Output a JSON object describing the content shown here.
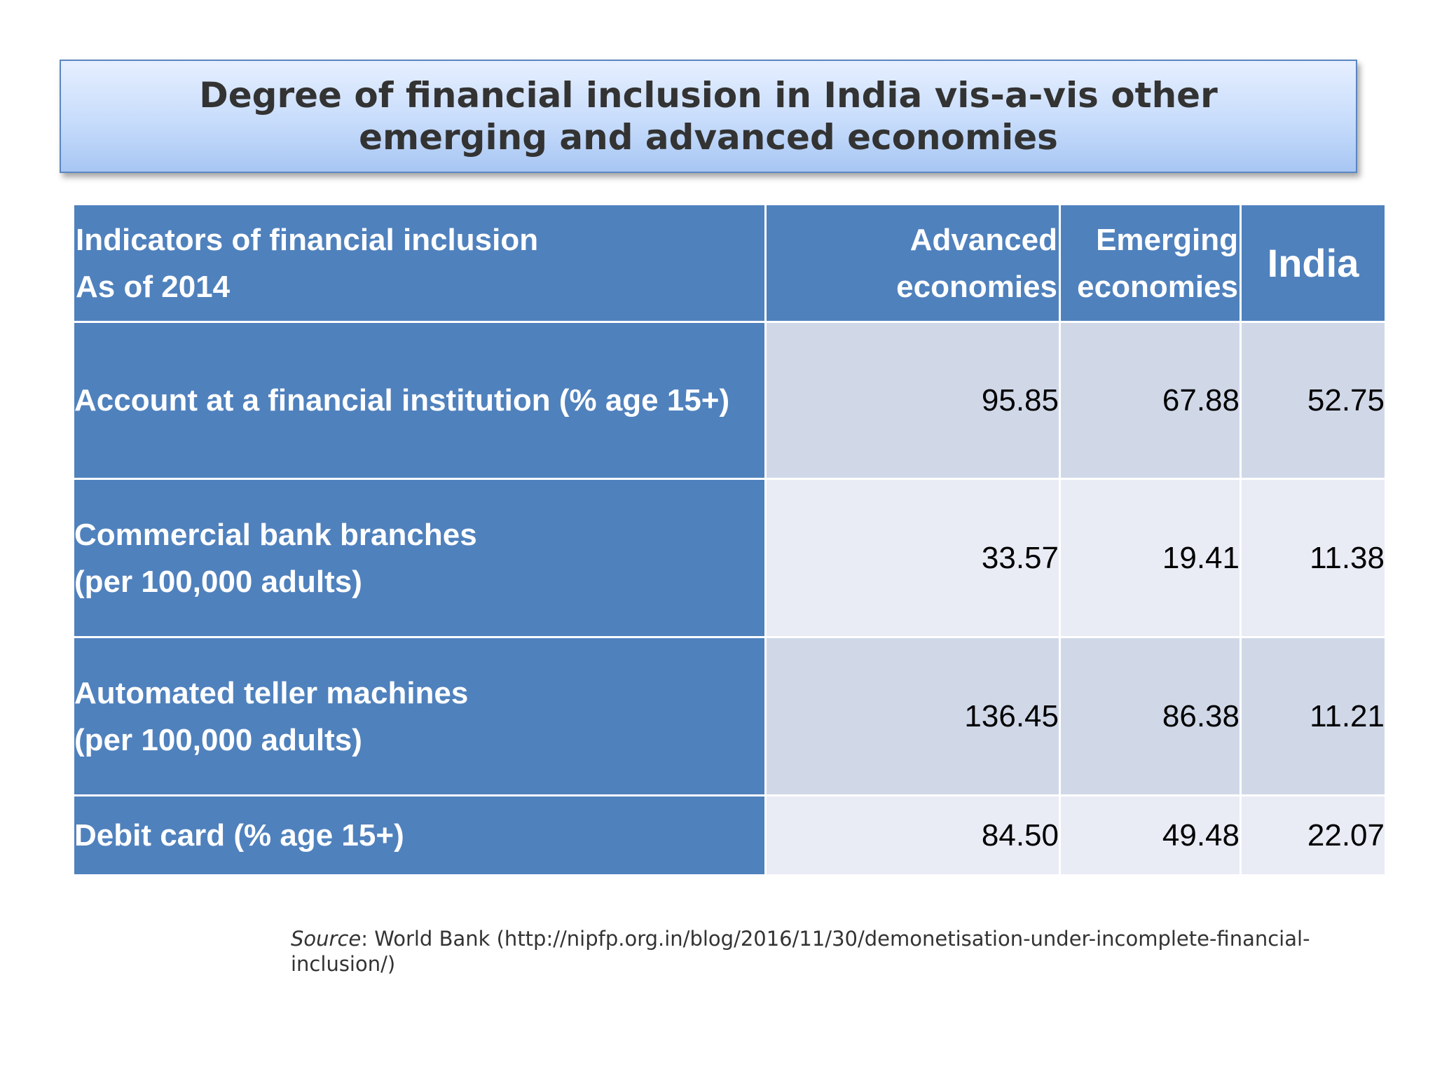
{
  "title": {
    "line1": "Degree of financial inclusion in India vis-a-vis other",
    "line2": "emerging and advanced economies"
  },
  "table": {
    "header": {
      "indicator_line1": "Indicators of financial inclusion",
      "indicator_line2": "As of 2014",
      "advanced_line1": "Advanced",
      "advanced_line2": "economies",
      "emerging_line1": "Emerging",
      "emerging_line2": "economies",
      "india": "India"
    },
    "rows": [
      {
        "label_line1": "Account at a financial institution (% age 15+)",
        "label_line2": "",
        "advanced": "95.85",
        "emerging": "67.88",
        "india": "52.75"
      },
      {
        "label_line1": "Commercial bank branches",
        "label_line2": "(per 100,000 adults)",
        "advanced": "33.57",
        "emerging": "19.41",
        "india": "11.38"
      },
      {
        "label_line1": "Automated teller machines",
        "label_line2": "(per 100,000 adults)",
        "advanced": "136.45",
        "emerging": "86.38",
        "india": "11.21"
      },
      {
        "label_line1": "Debit card (% age 15+)",
        "label_line2": "",
        "advanced": "84.50",
        "emerging": "49.48",
        "india": "22.07"
      }
    ]
  },
  "source": {
    "label": "Source",
    "text": ": World Bank (http://nipfp.org.in/blog/2016/11/30/demonetisation-under-incomplete-financial-inclusion/)"
  },
  "colors": {
    "header_blue": "#4f81bd",
    "cell_dark": "#d0d8e8",
    "cell_light": "#e9ebf5",
    "title_gradient_top": "#e6efff",
    "title_gradient_bottom": "#a8c6f3"
  }
}
